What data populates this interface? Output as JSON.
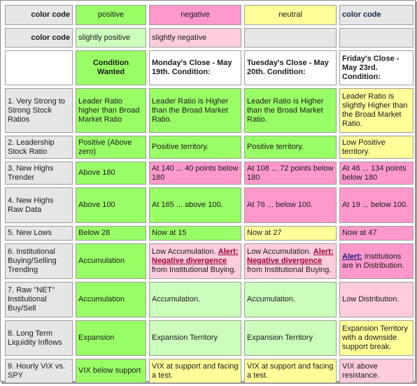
{
  "header": {
    "row1": {
      "label": "color code",
      "positive": "positive",
      "negative": "negative",
      "neutral": "neutral",
      "last": "color code"
    },
    "row2": {
      "label": "color code",
      "slightly_positive": "slightly positive",
      "slightly_negative": "slightly negative"
    },
    "row3": {
      "condition": "Condition Wanted",
      "monday": "Monday's Close - May 19th. Condition:",
      "tuesday": "Tuesday's Close - May 20th. Condition:",
      "friday": "Friday's Close - May 23rd. Condition:"
    }
  },
  "rows": [
    {
      "label": "1. Very Strong to Strong Stock Ratios",
      "wanted": "Leader Ratio higher than Broad Market Ratio",
      "monday": "Leader Ratio is Higher than the Broad Market Ratio.",
      "tuesday": "Leader Ratio is Higher than the Broad Market Ratio.",
      "friday": "Leader Ratio is slightly Higher than the Broad Market Ratio."
    },
    {
      "label": "2. Leadership Stock Ratio",
      "wanted": "Positive (Above zero)",
      "monday": "Positive territory.",
      "tuesday": "Positive territory.",
      "friday": "Low Positive territory."
    },
    {
      "label": "3. New Highs Trender",
      "wanted": "Above 180",
      "monday": "At 140 ... 40 points below 180",
      "tuesday": "At 108 ... 72 points below 180",
      "friday": "At 46 ... 134 points below 180"
    },
    {
      "label": "4. New Highs Raw Data",
      "wanted": "Above 100",
      "monday": "At 165 ... above 100.",
      "tuesday": "At 76 ... below 100.",
      "friday": "At 19 ... below 100."
    },
    {
      "label": "5. New Lows",
      "wanted": "Below 28",
      "monday": "Now at 15",
      "tuesday": "Now at 27",
      "friday": "Now at 47"
    },
    {
      "label": "6. Institutional Buying/Selling Trending",
      "wanted": "Accumulation",
      "monday_pre": "Low Accumulation.",
      "monday_alert": "Alert: Negative divergence",
      "monday_post": "from Institutional Buying.",
      "tuesday_pre": "Low Accumulation.",
      "tuesday_alert": "Alert: Negative divergence",
      "tuesday_post": "from Institutional Buying.",
      "friday_alert": "Alert:",
      "friday_post": "Institutions are in Distribution."
    },
    {
      "label": "7. Raw \"NET\" Institutional Buy/Sell",
      "wanted": "Accumulation",
      "monday": "Accumulation.",
      "tuesday": "Accumulation.",
      "friday": "Low Distribution."
    },
    {
      "label": "8. Long Term Liquidity Inflows",
      "wanted": "Expansion",
      "monday": "Expansion Territory",
      "tuesday": "Expansion Territory",
      "friday": "Expansion Territory with a downside support break."
    },
    {
      "label": "9. Hourly VIX vs. SPY",
      "wanted": "VIX below support",
      "monday": "VIX at support and facing a test.",
      "tuesday": "VIX at support and facing a test.",
      "friday": "VIX above resistance."
    }
  ],
  "colors": {
    "positive": "#99ff66",
    "slightly_positive": "#ccffbb",
    "negative": "#ff99cc",
    "slightly_negative": "#ffccdd",
    "neutral": "#ffff99",
    "label_gray": "#e6e6e6"
  }
}
